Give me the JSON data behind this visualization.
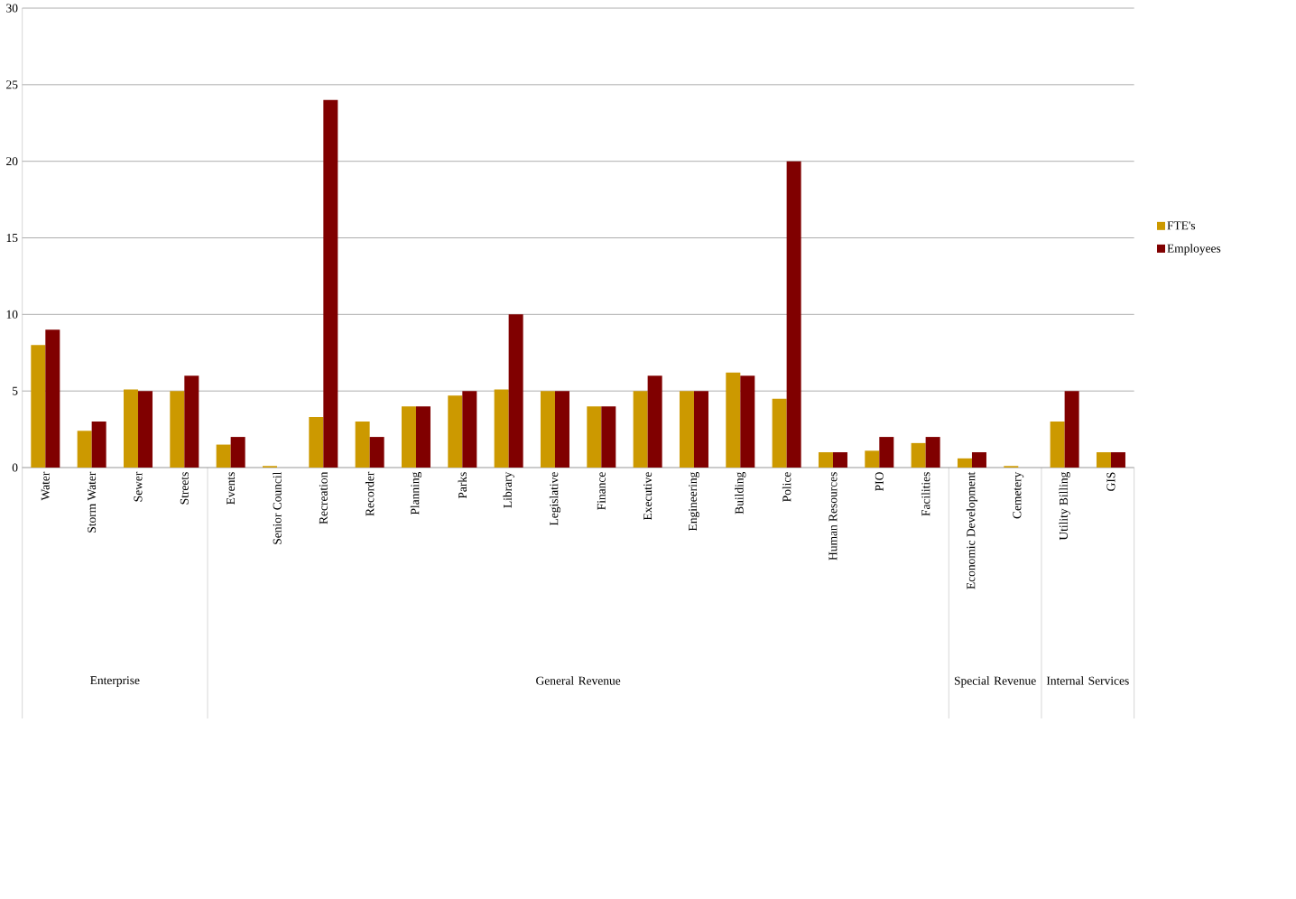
{
  "chart_data": {
    "type": "bar",
    "categories": [
      "Water",
      "Storm Water",
      "Sewer",
      "Streets",
      "Events",
      "Senior Council",
      "Recreation",
      "Recorder",
      "Planning",
      "Parks",
      "Library",
      "Legislative",
      "Finance",
      "Executive",
      "Engineering",
      "Building",
      "Police",
      "Human Resources",
      "PIO",
      "Facilities",
      "Economic Development",
      "Cemetery",
      "Utility Billing",
      "GIS"
    ],
    "series": [
      {
        "name": "FTE's",
        "color": "#cc9900",
        "values": [
          8,
          2.4,
          5.1,
          5,
          1.5,
          0.1,
          3.3,
          3,
          4,
          4.7,
          5.1,
          5,
          4,
          5,
          5,
          6.2,
          4.5,
          1,
          1.1,
          1.6,
          0.6,
          0.1,
          3,
          1
        ]
      },
      {
        "name": "Employees",
        "color": "#800000",
        "values": [
          9,
          3,
          5,
          6,
          2,
          0,
          24,
          2,
          4,
          5,
          10,
          5,
          4,
          6,
          5,
          6,
          20,
          1,
          2,
          2,
          1,
          0,
          5,
          1
        ]
      }
    ],
    "annotations": [
      "Enterprise",
      "General Revenue",
      "Special Revenue",
      "Internal Services"
    ],
    "ylim": [
      0,
      30
    ],
    "yticks": [
      0,
      5,
      10,
      15,
      20,
      25,
      30
    ],
    "grid": "y",
    "legend": "right"
  }
}
